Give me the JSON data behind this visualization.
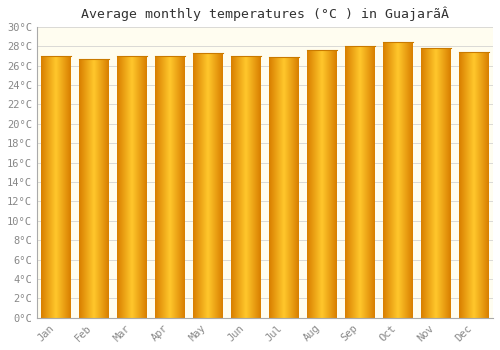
{
  "title": "Average monthly temperatures (°C ) in GuajarãÂ",
  "months": [
    "Jan",
    "Feb",
    "Mar",
    "Apr",
    "May",
    "Jun",
    "Jul",
    "Aug",
    "Sep",
    "Oct",
    "Nov",
    "Dec"
  ],
  "values": [
    27.0,
    26.7,
    27.0,
    27.0,
    27.3,
    27.0,
    26.9,
    27.6,
    28.0,
    28.4,
    27.8,
    27.4
  ],
  "bar_color_center": "#FFC72C",
  "bar_color_edge": "#F5A800",
  "bar_color_outer": "#E08000",
  "bar_edge_color": "#C97A00",
  "plot_bg_color": "#FFFDF0",
  "grid_color": "#CCCCCC",
  "ylim": [
    0,
    30
  ],
  "ytick_step": 2,
  "title_fontsize": 9.5,
  "tick_fontsize": 7.5,
  "font_family": "monospace"
}
